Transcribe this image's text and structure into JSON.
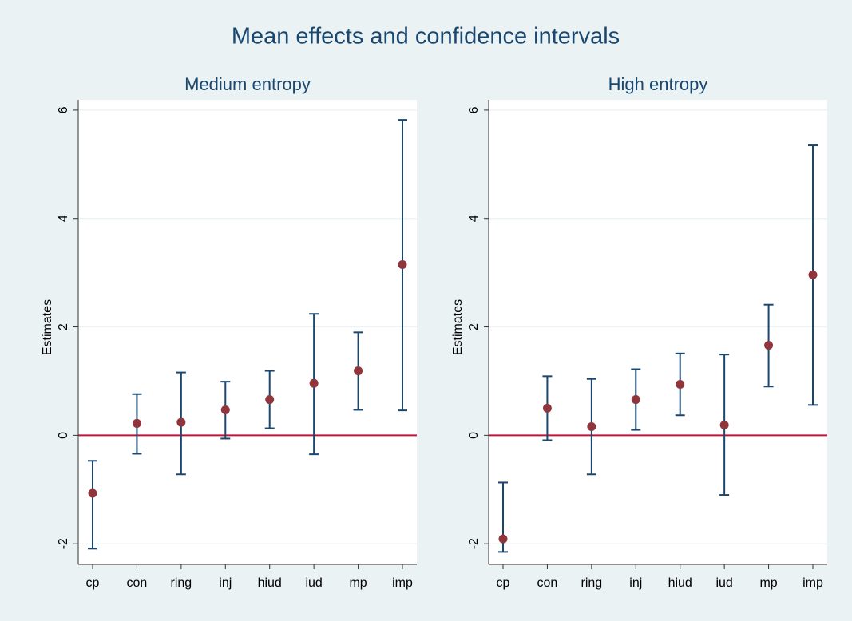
{
  "title": "Mean effects and confidence intervals",
  "chart_data": [
    {
      "type": "errorbar",
      "title": "Medium entropy",
      "ylabel": "Estimates",
      "categories": [
        "cp",
        "con",
        "ring",
        "inj",
        "hiud",
        "iud",
        "mp",
        "imp"
      ],
      "values": [
        -1.07,
        0.22,
        0.24,
        0.47,
        0.66,
        0.96,
        1.19,
        3.15
      ],
      "lower": [
        -2.09,
        -0.34,
        -0.72,
        -0.06,
        0.13,
        -0.35,
        0.47,
        0.46
      ],
      "upper": [
        -0.47,
        0.76,
        1.16,
        0.99,
        1.19,
        2.24,
        1.9,
        5.82
      ],
      "point_color": "#90353b",
      "bar_color": "#1a476f",
      "ylim": [
        -2.38,
        6.19
      ],
      "yticks": [
        -2,
        0,
        2,
        4,
        6
      ],
      "grid": true,
      "hline": 0,
      "hline_color": "#c0143c"
    },
    {
      "type": "errorbar",
      "title": "High entropy",
      "ylabel": "Estimates",
      "categories": [
        "cp",
        "con",
        "ring",
        "inj",
        "hiud",
        "iud",
        "mp",
        "imp"
      ],
      "values": [
        -1.91,
        0.5,
        0.16,
        0.66,
        0.94,
        0.19,
        1.66,
        2.96
      ],
      "lower": [
        -2.15,
        -0.09,
        -0.72,
        0.1,
        0.37,
        -1.1,
        0.9,
        0.56
      ],
      "upper": [
        -0.87,
        1.09,
        1.04,
        1.22,
        1.51,
        1.49,
        2.41,
        5.35
      ],
      "point_color": "#90353b",
      "bar_color": "#1a476f",
      "ylim": [
        -2.38,
        6.19
      ],
      "yticks": [
        -2,
        0,
        2,
        4,
        6
      ],
      "grid": true,
      "hline": 0,
      "hline_color": "#c0143c"
    }
  ]
}
